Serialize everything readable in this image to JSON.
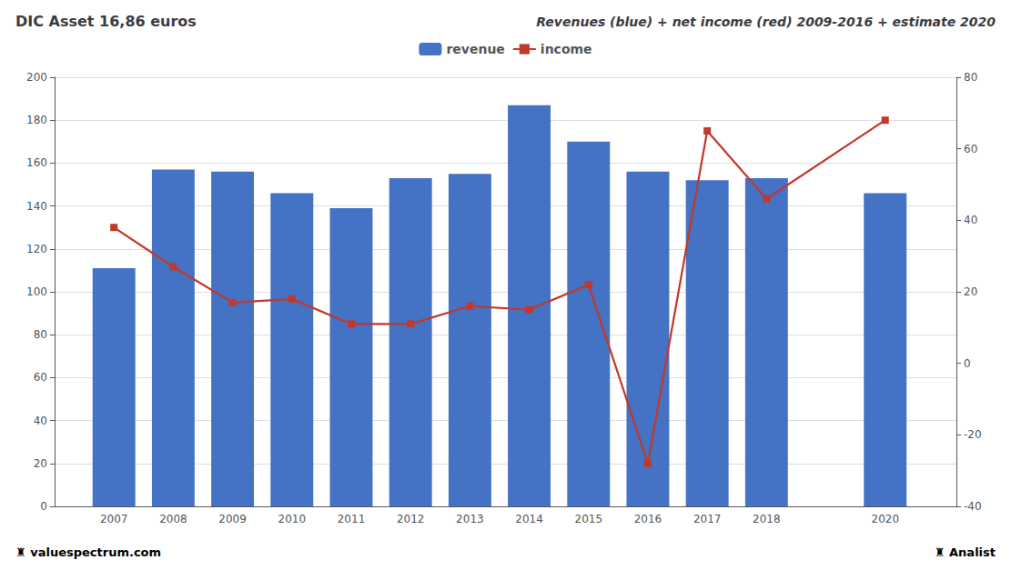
{
  "chart_data": {
    "type": "bar",
    "title": "DIC Asset 16,86 euros",
    "subtitle": "Revenues (blue) + net income (red) 2009-2016 + estimate 2020",
    "annotations": [
      "♜ valuespectrum.com",
      "♜ Analist"
    ],
    "x": [
      2007,
      2008,
      2009,
      2010,
      2011,
      2012,
      2013,
      2014,
      2015,
      2016,
      2017,
      2018,
      2020
    ],
    "series": [
      {
        "name": "revenue",
        "type": "bar",
        "color": "#4472c4",
        "values": [
          111,
          157,
          156,
          146,
          139,
          153,
          155,
          187,
          170,
          156,
          152,
          153,
          146
        ]
      },
      {
        "name": "income",
        "type": "line",
        "color": "#c0392b",
        "marker": "square",
        "axis": "y2",
        "values": [
          38,
          27,
          17,
          18,
          11,
          11,
          16,
          15,
          22,
          -28,
          65,
          46,
          68
        ]
      }
    ],
    "xlim": [
      2006.0,
      2021.2
    ],
    "xticks": [
      2007,
      2008,
      2009,
      2010,
      2011,
      2012,
      2013,
      2014,
      2015,
      2016,
      2017,
      2018,
      2020
    ],
    "ylim": [
      0,
      200
    ],
    "yticks": [
      0,
      20,
      40,
      60,
      80,
      100,
      120,
      140,
      160,
      180,
      200
    ],
    "y2lim": [
      -40,
      80
    ],
    "y2ticks": [
      -40,
      -20,
      0,
      20,
      40,
      60,
      80
    ],
    "grid": true,
    "legend": "top"
  }
}
